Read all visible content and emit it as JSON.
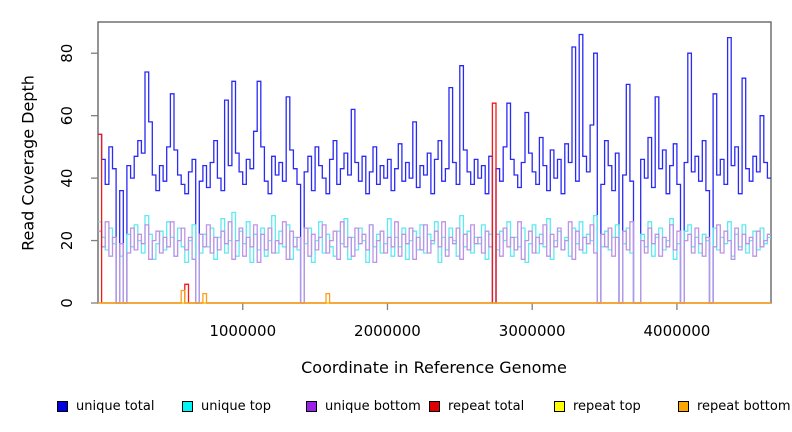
{
  "chart_data": {
    "type": "line",
    "subtype": "step-coverage",
    "title": "",
    "xlabel": "Coordinate in Reference Genome",
    "ylabel": "Read Coverage Depth",
    "x_axis": {
      "min": 0,
      "max": 4650000,
      "bin_size": 25000,
      "ticks": [
        {
          "value": 1000000,
          "label": "1000000"
        },
        {
          "value": 2000000,
          "label": "2000000"
        },
        {
          "value": 3000000,
          "label": "3000000"
        },
        {
          "value": 4000000,
          "label": "4000000"
        }
      ]
    },
    "y_axis": {
      "min": 0,
      "max": 90,
      "ticks": [
        {
          "value": 0,
          "label": "0"
        },
        {
          "value": 20,
          "label": "20"
        },
        {
          "value": 40,
          "label": "40"
        },
        {
          "value": 60,
          "label": "60"
        },
        {
          "value": 80,
          "label": "80"
        }
      ]
    },
    "legend_position": "bottom",
    "grid": false,
    "series": [
      {
        "name": "unique total",
        "line_color": "#2a2af5",
        "legend_color": "#0000e0",
        "values": [
          54,
          46,
          38,
          50,
          43,
          0,
          36,
          0,
          44,
          40,
          47,
          52,
          48,
          74,
          58,
          41,
          36,
          44,
          39,
          50,
          67,
          49,
          41,
          38,
          35,
          42,
          46,
          0,
          39,
          44,
          37,
          45,
          52,
          40,
          36,
          65,
          44,
          71,
          48,
          42,
          38,
          46,
          43,
          55,
          71,
          50,
          39,
          35,
          47,
          41,
          45,
          39,
          66,
          49,
          43,
          38,
          0,
          42,
          47,
          36,
          50,
          44,
          40,
          35,
          46,
          52,
          38,
          43,
          48,
          41,
          62,
          45,
          39,
          47,
          35,
          42,
          50,
          38,
          44,
          40,
          46,
          36,
          43,
          51,
          39,
          45,
          40,
          58,
          37,
          44,
          41,
          48,
          35,
          46,
          52,
          39,
          43,
          69,
          45,
          38,
          76,
          49,
          42,
          38,
          46,
          40,
          44,
          35,
          47,
          0,
          43,
          39,
          50,
          64,
          46,
          41,
          37,
          45,
          61,
          48,
          42,
          38,
          53,
          44,
          36,
          49,
          40,
          46,
          35,
          51,
          45,
          82,
          39,
          86,
          47,
          42,
          57,
          80,
          0,
          38,
          52,
          44,
          36,
          48,
          0,
          41,
          70,
          39,
          0,
          0,
          46,
          40,
          53,
          37,
          66,
          43,
          49,
          35,
          44,
          51,
          38,
          0,
          45,
          80,
          42,
          47,
          39,
          52,
          36,
          0,
          67,
          41,
          46,
          38,
          85,
          44,
          50,
          35,
          72,
          43,
          39,
          47,
          42,
          60,
          45,
          40
        ]
      },
      {
        "name": "unique top",
        "line_color": "#5fe9f2",
        "legend_color": "#00f5f5",
        "values": [
          26,
          21,
          17,
          24,
          19,
          0,
          15,
          0,
          22,
          18,
          25,
          20,
          16,
          28,
          22,
          14,
          19,
          23,
          17,
          26,
          21,
          15,
          24,
          18,
          13,
          20,
          25,
          0,
          16,
          22,
          18,
          24,
          14,
          21,
          27,
          16,
          20,
          29,
          15,
          23,
          19,
          26,
          13,
          22,
          17,
          24,
          15,
          20,
          28,
          16,
          23,
          18,
          25,
          14,
          21,
          17,
          0,
          19,
          24,
          13,
          20,
          26,
          16,
          22,
          18,
          15,
          23,
          19,
          27,
          14,
          21,
          17,
          24,
          20,
          13,
          25,
          18,
          22,
          16,
          19,
          27,
          15,
          21,
          18,
          24,
          14,
          20,
          23,
          17,
          25,
          16,
          22,
          19,
          26,
          13,
          21,
          17,
          24,
          20,
          15,
          28,
          18,
          23,
          16,
          21,
          19,
          25,
          14,
          22,
          0,
          17,
          23,
          20,
          26,
          15,
          21,
          18,
          24,
          13,
          19,
          25,
          16,
          22,
          18,
          27,
          14,
          20,
          23,
          17,
          21,
          15,
          24,
          19,
          26,
          16,
          22,
          20,
          28,
          0,
          18,
          23,
          17,
          21,
          25,
          0,
          19,
          24,
          16,
          0,
          0,
          22,
          18,
          26,
          15,
          21,
          24,
          17,
          20,
          27,
          14,
          19,
          0,
          23,
          25,
          18,
          21,
          16,
          22,
          20,
          0,
          24,
          17,
          21,
          19,
          26,
          15,
          22,
          18,
          25,
          16,
          20,
          23,
          17,
          24,
          19,
          21
        ]
      },
      {
        "name": "unique bottom",
        "line_color": "#be93e6",
        "legend_color": "#9a23e8",
        "values": [
          23,
          18,
          26,
          15,
          21,
          0,
          19,
          0,
          16,
          24,
          17,
          22,
          19,
          25,
          14,
          20,
          23,
          16,
          21,
          18,
          26,
          15,
          20,
          24,
          17,
          21,
          14,
          0,
          22,
          18,
          25,
          16,
          21,
          17,
          23,
          19,
          26,
          14,
          20,
          24,
          15,
          21,
          18,
          25,
          13,
          22,
          17,
          24,
          16,
          20,
          19,
          26,
          14,
          23,
          18,
          21,
          0,
          24,
          15,
          22,
          17,
          21,
          25,
          16,
          20,
          23,
          14,
          26,
          18,
          21,
          15,
          24,
          19,
          22,
          17,
          25,
          13,
          20,
          23,
          16,
          21,
          18,
          26,
          15,
          22,
          19,
          24,
          14,
          21,
          17,
          25,
          16,
          20,
          23,
          18,
          26,
          15,
          21,
          19,
          24,
          14,
          22,
          17,
          25,
          19,
          21,
          16,
          23,
          18,
          0,
          22,
          15,
          24,
          18,
          21,
          17,
          26,
          14,
          20,
          23,
          16,
          21,
          19,
          25,
          15,
          22,
          18,
          24,
          17,
          20,
          26,
          14,
          23,
          17,
          21,
          19,
          25,
          16,
          0,
          22,
          18,
          24,
          15,
          21,
          0,
          23,
          17,
          26,
          0,
          0,
          20,
          16,
          24,
          19,
          22,
          15,
          21,
          18,
          25,
          17,
          23,
          0,
          20,
          22,
          16,
          24,
          19,
          15,
          21,
          0,
          18,
          25,
          16,
          23,
          20,
          14,
          24,
          17,
          22,
          19,
          21,
          15,
          23,
          18,
          20,
          22
        ]
      },
      {
        "name": "repeat total",
        "line_color": "#f01818",
        "legend_color": "#e00000",
        "default": 0,
        "spikes": {
          "0": 54,
          "24": 6,
          "109": 64
        }
      },
      {
        "name": "repeat top",
        "line_color": "#ffff00",
        "legend_color": "#ffff00",
        "default": 0,
        "spikes": {}
      },
      {
        "name": "repeat bottom",
        "line_color": "#ff9e1b",
        "legend_color": "#ffa500",
        "default": 0,
        "spikes": {
          "23": 4,
          "29": 3,
          "63": 3
        }
      }
    ]
  },
  "style": {
    "frame_color": "#5a5a5a",
    "tick_color": "#808080",
    "label_color": "#000000",
    "background": "#ffffff"
  }
}
